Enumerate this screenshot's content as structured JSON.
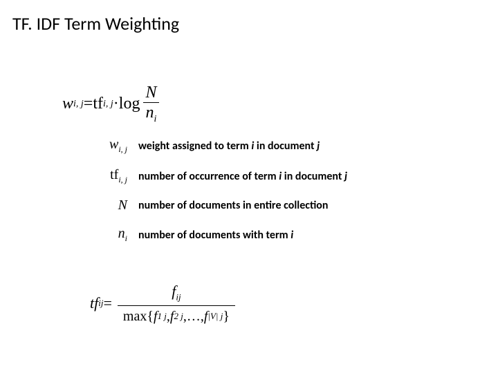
{
  "title": "TF. IDF Term Weighting",
  "mainEq": {
    "lhs_w": "w",
    "lhs_sub": "i, j",
    "eq": " = ",
    "tf": "tf",
    "tf_sub": "i, j",
    "dot": " · ",
    "log": "log",
    "N": "N",
    "n": "n",
    "n_sub": "i"
  },
  "defs": {
    "row1": {
      "sym_base": "w",
      "sym_sub": "i, j",
      "text_pre": "weight assigned to term ",
      "i": "i",
      "text_mid": " in document ",
      "j": "j"
    },
    "row2": {
      "sym_base": "tf",
      "sym_sub": "i, j",
      "text_pre": "number of occurrence of term ",
      "i": "i",
      "text_mid": " in document ",
      "j": "j"
    },
    "row3": {
      "sym_base": "N",
      "text": "number of documents in entire collection"
    },
    "row4": {
      "sym_base": "n",
      "sym_sub": "i",
      "text_pre": "number of documents with term ",
      "i": "i"
    }
  },
  "bottomEq": {
    "lhs": "tf",
    "lhs_sub": "ij",
    "eq": " = ",
    "num_f": "f",
    "num_sub": "ij",
    "max": "max",
    "lb": "{",
    "f1": "f",
    "f1s": "1 j",
    "c": ", ",
    "f2": "f",
    "f2s": "2 j",
    "dots": ",…, ",
    "fv": "f",
    "fvs": "|V| j",
    "rb": "}"
  },
  "colors": {
    "bg": "#ffffff",
    "text": "#000000"
  }
}
